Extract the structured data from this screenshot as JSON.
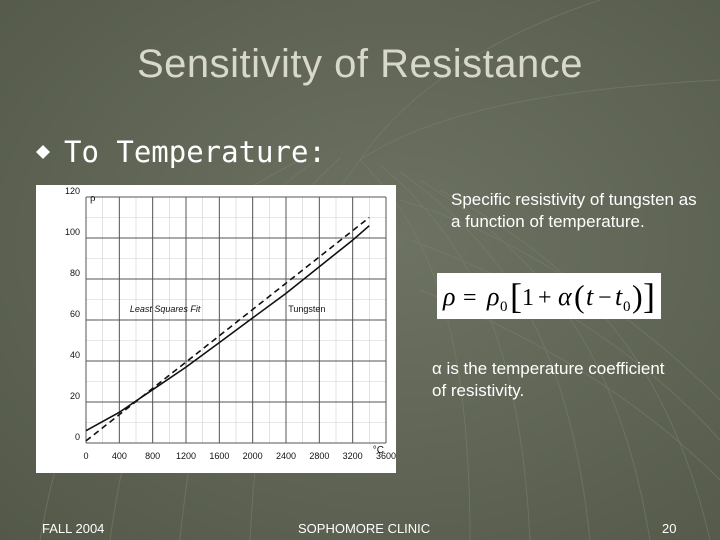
{
  "slide": {
    "title": "Sensitivity of Resistance",
    "bullet": "To Temperature:",
    "description": "Specific resistivity of tungsten as a function of temperature.",
    "formula_text": "ρ = ρ0[1 + α(t − t0)]",
    "alpha_symbol": "α",
    "alpha_note": " is the temperature coefficient of resistivity.",
    "footer_left": "FALL 2004",
    "footer_center": "SOPHOMORE CLINIC",
    "footer_right": "20"
  },
  "colors": {
    "background": "#5f6454",
    "title": "#d8d8cc",
    "text": "#ffffff"
  },
  "chart_data": {
    "type": "line",
    "ylabel": "ρ",
    "xlabel": "°C",
    "xlim": [
      0,
      3600
    ],
    "ylim": [
      0,
      120
    ],
    "x_ticks": [
      0,
      400,
      800,
      1200,
      1600,
      2000,
      2400,
      2800,
      3200,
      3600
    ],
    "y_ticks": [
      0,
      20,
      40,
      60,
      80,
      100,
      120
    ],
    "grid": true,
    "annotations": [
      "Least Squares Fit",
      "Tungsten"
    ],
    "series": [
      {
        "name": "Tungsten",
        "style": "solid",
        "x": [
          0,
          400,
          800,
          1200,
          1600,
          2000,
          2400,
          2800,
          3200,
          3400
        ],
        "y": [
          6,
          15,
          26,
          37,
          49,
          61,
          73,
          86,
          99,
          106
        ]
      },
      {
        "name": "Least Squares Fit",
        "style": "dashed",
        "x": [
          0,
          3400
        ],
        "y": [
          1,
          110
        ]
      }
    ]
  }
}
